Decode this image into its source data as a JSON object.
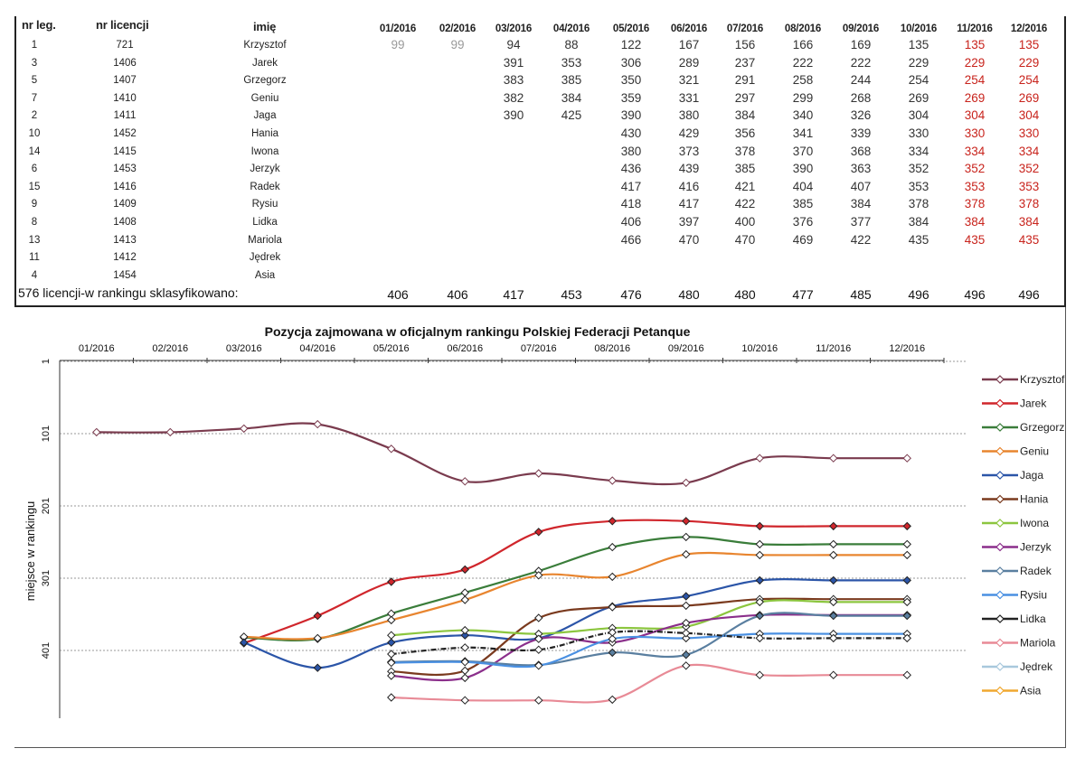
{
  "table": {
    "headers": {
      "leg": "nr leg.",
      "lic": "nr licencji",
      "name": "imię",
      "months": [
        "01/2016",
        "02/2016",
        "03/2016",
        "04/2016",
        "05/2016",
        "06/2016",
        "07/2016",
        "08/2016",
        "09/2016",
        "10/2016",
        "11/2016",
        "12/2016"
      ]
    },
    "rows": [
      {
        "leg": "1",
        "lic": "721",
        "name": "Krzysztof",
        "values": [
          "99",
          "99",
          "94",
          "88",
          "122",
          "167",
          "156",
          "166",
          "169",
          "135",
          "135",
          "135"
        ]
      },
      {
        "leg": "3",
        "lic": "1406",
        "name": "Jarek",
        "values": [
          "",
          "",
          "391",
          "353",
          "306",
          "289",
          "237",
          "222",
          "222",
          "229",
          "229",
          "229"
        ]
      },
      {
        "leg": "5",
        "lic": "1407",
        "name": "Grzegorz",
        "values": [
          "",
          "",
          "383",
          "385",
          "350",
          "321",
          "291",
          "258",
          "244",
          "254",
          "254",
          "254"
        ]
      },
      {
        "leg": "7",
        "lic": "1410",
        "name": "Geniu",
        "values": [
          "",
          "",
          "382",
          "384",
          "359",
          "331",
          "297",
          "299",
          "268",
          "269",
          "269",
          "269"
        ]
      },
      {
        "leg": "2",
        "lic": "1411",
        "name": "Jaga",
        "values": [
          "",
          "",
          "390",
          "425",
          "390",
          "380",
          "384",
          "340",
          "326",
          "304",
          "304",
          "304"
        ]
      },
      {
        "leg": "10",
        "lic": "1452",
        "name": "Hania",
        "values": [
          "",
          "",
          "",
          "",
          "430",
          "429",
          "356",
          "341",
          "339",
          "330",
          "330",
          "330"
        ]
      },
      {
        "leg": "14",
        "lic": "1415",
        "name": "Iwona",
        "values": [
          "",
          "",
          "",
          "",
          "380",
          "373",
          "378",
          "370",
          "368",
          "334",
          "334",
          "334"
        ]
      },
      {
        "leg": "6",
        "lic": "1453",
        "name": "Jerzyk",
        "values": [
          "",
          "",
          "",
          "",
          "436",
          "439",
          "385",
          "390",
          "363",
          "352",
          "352",
          "352"
        ]
      },
      {
        "leg": "15",
        "lic": "1416",
        "name": "Radek",
        "values": [
          "",
          "",
          "",
          "",
          "417",
          "416",
          "421",
          "404",
          "407",
          "353",
          "353",
          "353"
        ]
      },
      {
        "leg": "9",
        "lic": "1409",
        "name": "Rysiu",
        "values": [
          "",
          "",
          "",
          "",
          "418",
          "417",
          "422",
          "385",
          "384",
          "378",
          "378",
          "378"
        ]
      },
      {
        "leg": "8",
        "lic": "1408",
        "name": "Lidka",
        "values": [
          "",
          "",
          "",
          "",
          "406",
          "397",
          "400",
          "376",
          "377",
          "384",
          "384",
          "384"
        ]
      },
      {
        "leg": "13",
        "lic": "1413",
        "name": "Mariola",
        "values": [
          "",
          "",
          "",
          "",
          "466",
          "470",
          "470",
          "469",
          "422",
          "435",
          "435",
          "435"
        ]
      },
      {
        "leg": "11",
        "lic": "1412",
        "name": "Jędrek",
        "values": [
          "",
          "",
          "",
          "",
          "",
          "",
          "",
          "",
          "",
          "",
          "",
          ""
        ]
      },
      {
        "leg": "4",
        "lic": "1454",
        "name": "Asia",
        "values": [
          "",
          "",
          "",
          "",
          "",
          "",
          "",
          "",
          "",
          "",
          "",
          ""
        ]
      }
    ],
    "footer_label": "576 licencji-w rankingu sklasyfikowano:",
    "footer_values": [
      "406",
      "406",
      "417",
      "453",
      "476",
      "480",
      "480",
      "477",
      "485",
      "496",
      "496",
      "496"
    ]
  },
  "chart_data": {
    "type": "line",
    "title": "Pozycja zajmowana w oficjalnym rankingu Polskiej Federacji Petanque",
    "xlabel": "",
    "ylabel": "miejsce w rankingu",
    "categories": [
      "01/2016",
      "02/2016",
      "03/2016",
      "04/2016",
      "05/2016",
      "06/2016",
      "07/2016",
      "08/2016",
      "09/2016",
      "10/2016",
      "11/2016",
      "12/2016"
    ],
    "y_ticks": [
      "1",
      "101",
      "201",
      "301",
      "401"
    ],
    "ylim": [
      1,
      496
    ],
    "y_reversed": true,
    "legend_position": "right",
    "series": [
      {
        "name": "Krzysztof",
        "color": "#7a3b4e",
        "values": [
          99,
          99,
          94,
          88,
          122,
          167,
          156,
          166,
          169,
          135,
          135,
          135
        ]
      },
      {
        "name": "Jarek",
        "color": "#d0262c",
        "values": [
          null,
          null,
          391,
          353,
          306,
          289,
          237,
          222,
          222,
          229,
          229,
          229
        ]
      },
      {
        "name": "Grzegorz",
        "color": "#3a7d3a",
        "values": [
          null,
          null,
          383,
          385,
          350,
          321,
          291,
          258,
          244,
          254,
          254,
          254
        ]
      },
      {
        "name": "Geniu",
        "color": "#e8852f",
        "values": [
          null,
          null,
          382,
          384,
          359,
          331,
          297,
          299,
          268,
          269,
          269,
          269
        ]
      },
      {
        "name": "Jaga",
        "color": "#2b55a8",
        "values": [
          null,
          null,
          390,
          425,
          390,
          380,
          384,
          340,
          326,
          304,
          304,
          304
        ]
      },
      {
        "name": "Hania",
        "color": "#7a3a1e",
        "values": [
          null,
          null,
          null,
          null,
          430,
          429,
          356,
          341,
          339,
          330,
          330,
          330
        ]
      },
      {
        "name": "Iwona",
        "color": "#8cc63f",
        "values": [
          null,
          null,
          null,
          null,
          380,
          373,
          378,
          370,
          368,
          334,
          334,
          334
        ]
      },
      {
        "name": "Jerzyk",
        "color": "#8b2f8b",
        "values": [
          null,
          null,
          null,
          null,
          436,
          439,
          385,
          390,
          363,
          352,
          352,
          352
        ]
      },
      {
        "name": "Radek",
        "color": "#5a7fa0",
        "values": [
          null,
          null,
          null,
          null,
          417,
          416,
          421,
          404,
          407,
          353,
          353,
          353
        ]
      },
      {
        "name": "Rysiu",
        "color": "#4a90e2",
        "values": [
          null,
          null,
          null,
          null,
          418,
          417,
          422,
          385,
          384,
          378,
          378,
          378
        ]
      },
      {
        "name": "Lidka",
        "color": "#222222",
        "values": [
          null,
          null,
          null,
          null,
          406,
          397,
          400,
          376,
          377,
          384,
          384,
          384
        ]
      },
      {
        "name": "Mariola",
        "color": "#e88a96",
        "values": [
          null,
          null,
          null,
          null,
          466,
          470,
          470,
          469,
          422,
          435,
          435,
          435
        ]
      },
      {
        "name": "Jędrek",
        "color": "#a8c8dc",
        "values": [
          null,
          null,
          null,
          null,
          null,
          null,
          null,
          null,
          null,
          null,
          null,
          null
        ]
      },
      {
        "name": "Asia",
        "color": "#f0a830",
        "values": [
          null,
          null,
          null,
          null,
          null,
          null,
          null,
          null,
          null,
          null,
          null,
          null
        ]
      }
    ]
  }
}
